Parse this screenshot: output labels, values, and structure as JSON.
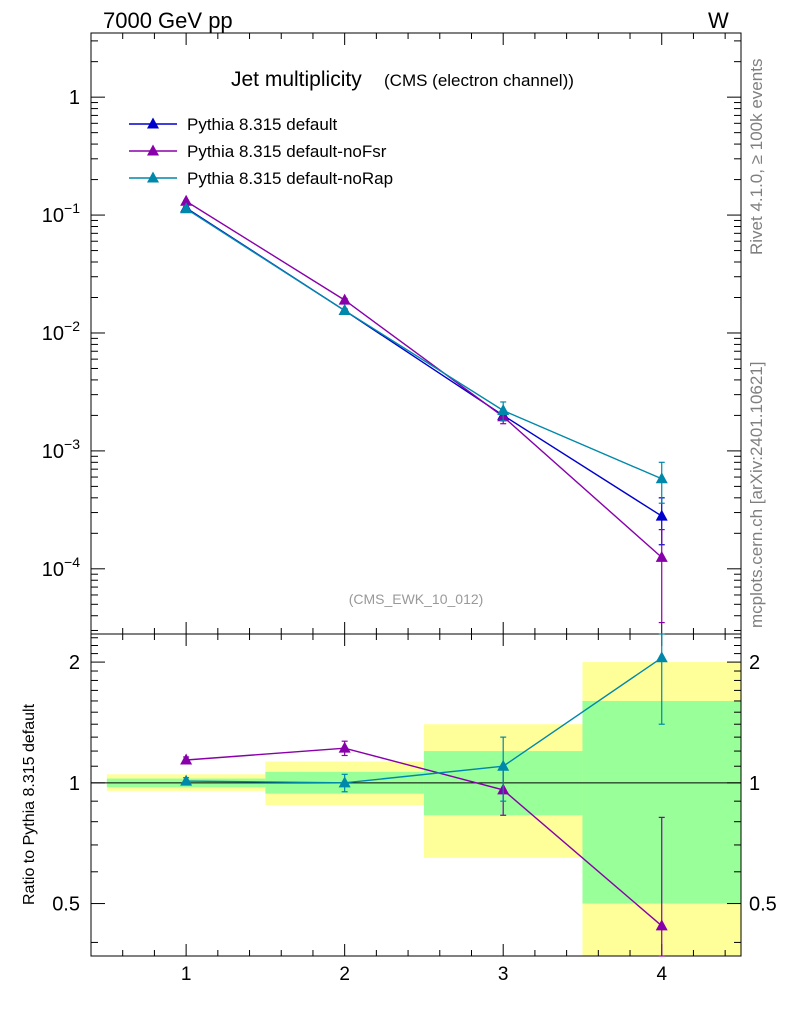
{
  "header": {
    "energy": "7000 GeV pp",
    "process": "W"
  },
  "side": {
    "rivet": "Rivet 4.1.0, ≥ 100k events",
    "source": "mcplots.cern.ch [arXiv:2401.10621]"
  },
  "chart_data": [
    {
      "type": "line",
      "panel": "main",
      "title": "Jet multiplicity",
      "subtitle": "(CMS (electron channel))",
      "watermark": "(CMS_EWK_10_012)",
      "yscale": "log",
      "ylim": [
        2.8e-05,
        3.5
      ],
      "xlim": [
        0.4,
        4.5
      ],
      "x": [
        1,
        2,
        3,
        4
      ],
      "xticks": [
        "1",
        "2",
        "3",
        "4"
      ],
      "yticks": [
        {
          "v": 1,
          "base": "1",
          "exp": ""
        },
        {
          "v": 0.1,
          "base": "10",
          "exp": "−1"
        },
        {
          "v": 0.01,
          "base": "10",
          "exp": "−2"
        },
        {
          "v": 0.001,
          "base": "10",
          "exp": "−3"
        },
        {
          "v": 0.0001,
          "base": "10",
          "exp": "−4"
        }
      ],
      "series": [
        {
          "name": "Pythia 8.315 default",
          "color": "#0000cc",
          "values": [
            0.115,
            0.0155,
            0.002,
            0.00028
          ],
          "errors": [
            0.002,
            0.0005,
            0.0002,
            0.00012
          ]
        },
        {
          "name": "Pythia 8.315 default-noFsr",
          "color": "#8800aa",
          "values": [
            0.131,
            0.019,
            0.00195,
            0.000125
          ],
          "errors": [
            0.002,
            0.0006,
            0.00025,
            9e-05
          ]
        },
        {
          "name": "Pythia 8.315 default-noRap",
          "color": "#0088aa",
          "values": [
            0.113,
            0.0155,
            0.0022,
            0.00058
          ],
          "errors": [
            0.002,
            0.0005,
            0.0004,
            0.00022
          ]
        }
      ]
    },
    {
      "type": "line",
      "panel": "ratio",
      "ylabel": "Ratio to Pythia 8.315 default",
      "yscale": "log",
      "ylim": [
        0.37,
        2.35
      ],
      "xlim": [
        0.4,
        4.5
      ],
      "x": [
        1,
        2,
        3,
        4
      ],
      "xticks": [
        "1",
        "2",
        "3",
        "4"
      ],
      "yticks": [
        "0.5",
        "1",
        "2"
      ],
      "reference": 1,
      "bands": [
        {
          "x0": 0.5,
          "x1": 1.5,
          "green": [
            0.975,
            1.025
          ],
          "yellow": [
            0.955,
            1.05
          ]
        },
        {
          "x0": 1.5,
          "x1": 2.5,
          "green": [
            0.94,
            1.065
          ],
          "yellow": [
            0.88,
            1.13
          ]
        },
        {
          "x0": 2.5,
          "x1": 3.5,
          "green": [
            0.83,
            1.2
          ],
          "yellow": [
            0.65,
            1.4
          ]
        },
        {
          "x0": 3.5,
          "x1": 4.5,
          "green": [
            0.5,
            1.6
          ],
          "yellow": [
            0.3,
            2.0
          ]
        }
      ],
      "series": [
        {
          "name": "Pythia 8.315 default-noFsr",
          "color": "#8800aa",
          "values": [
            1.14,
            1.22,
            0.96,
            0.44
          ],
          "errors": [
            0.02,
            0.05,
            0.13,
            0.38
          ]
        },
        {
          "name": "Pythia 8.315 default-noRap",
          "color": "#0088aa",
          "values": [
            1.01,
            1.0,
            1.1,
            2.05
          ],
          "errors": [
            0.02,
            0.05,
            0.2,
            0.65
          ]
        }
      ]
    }
  ]
}
